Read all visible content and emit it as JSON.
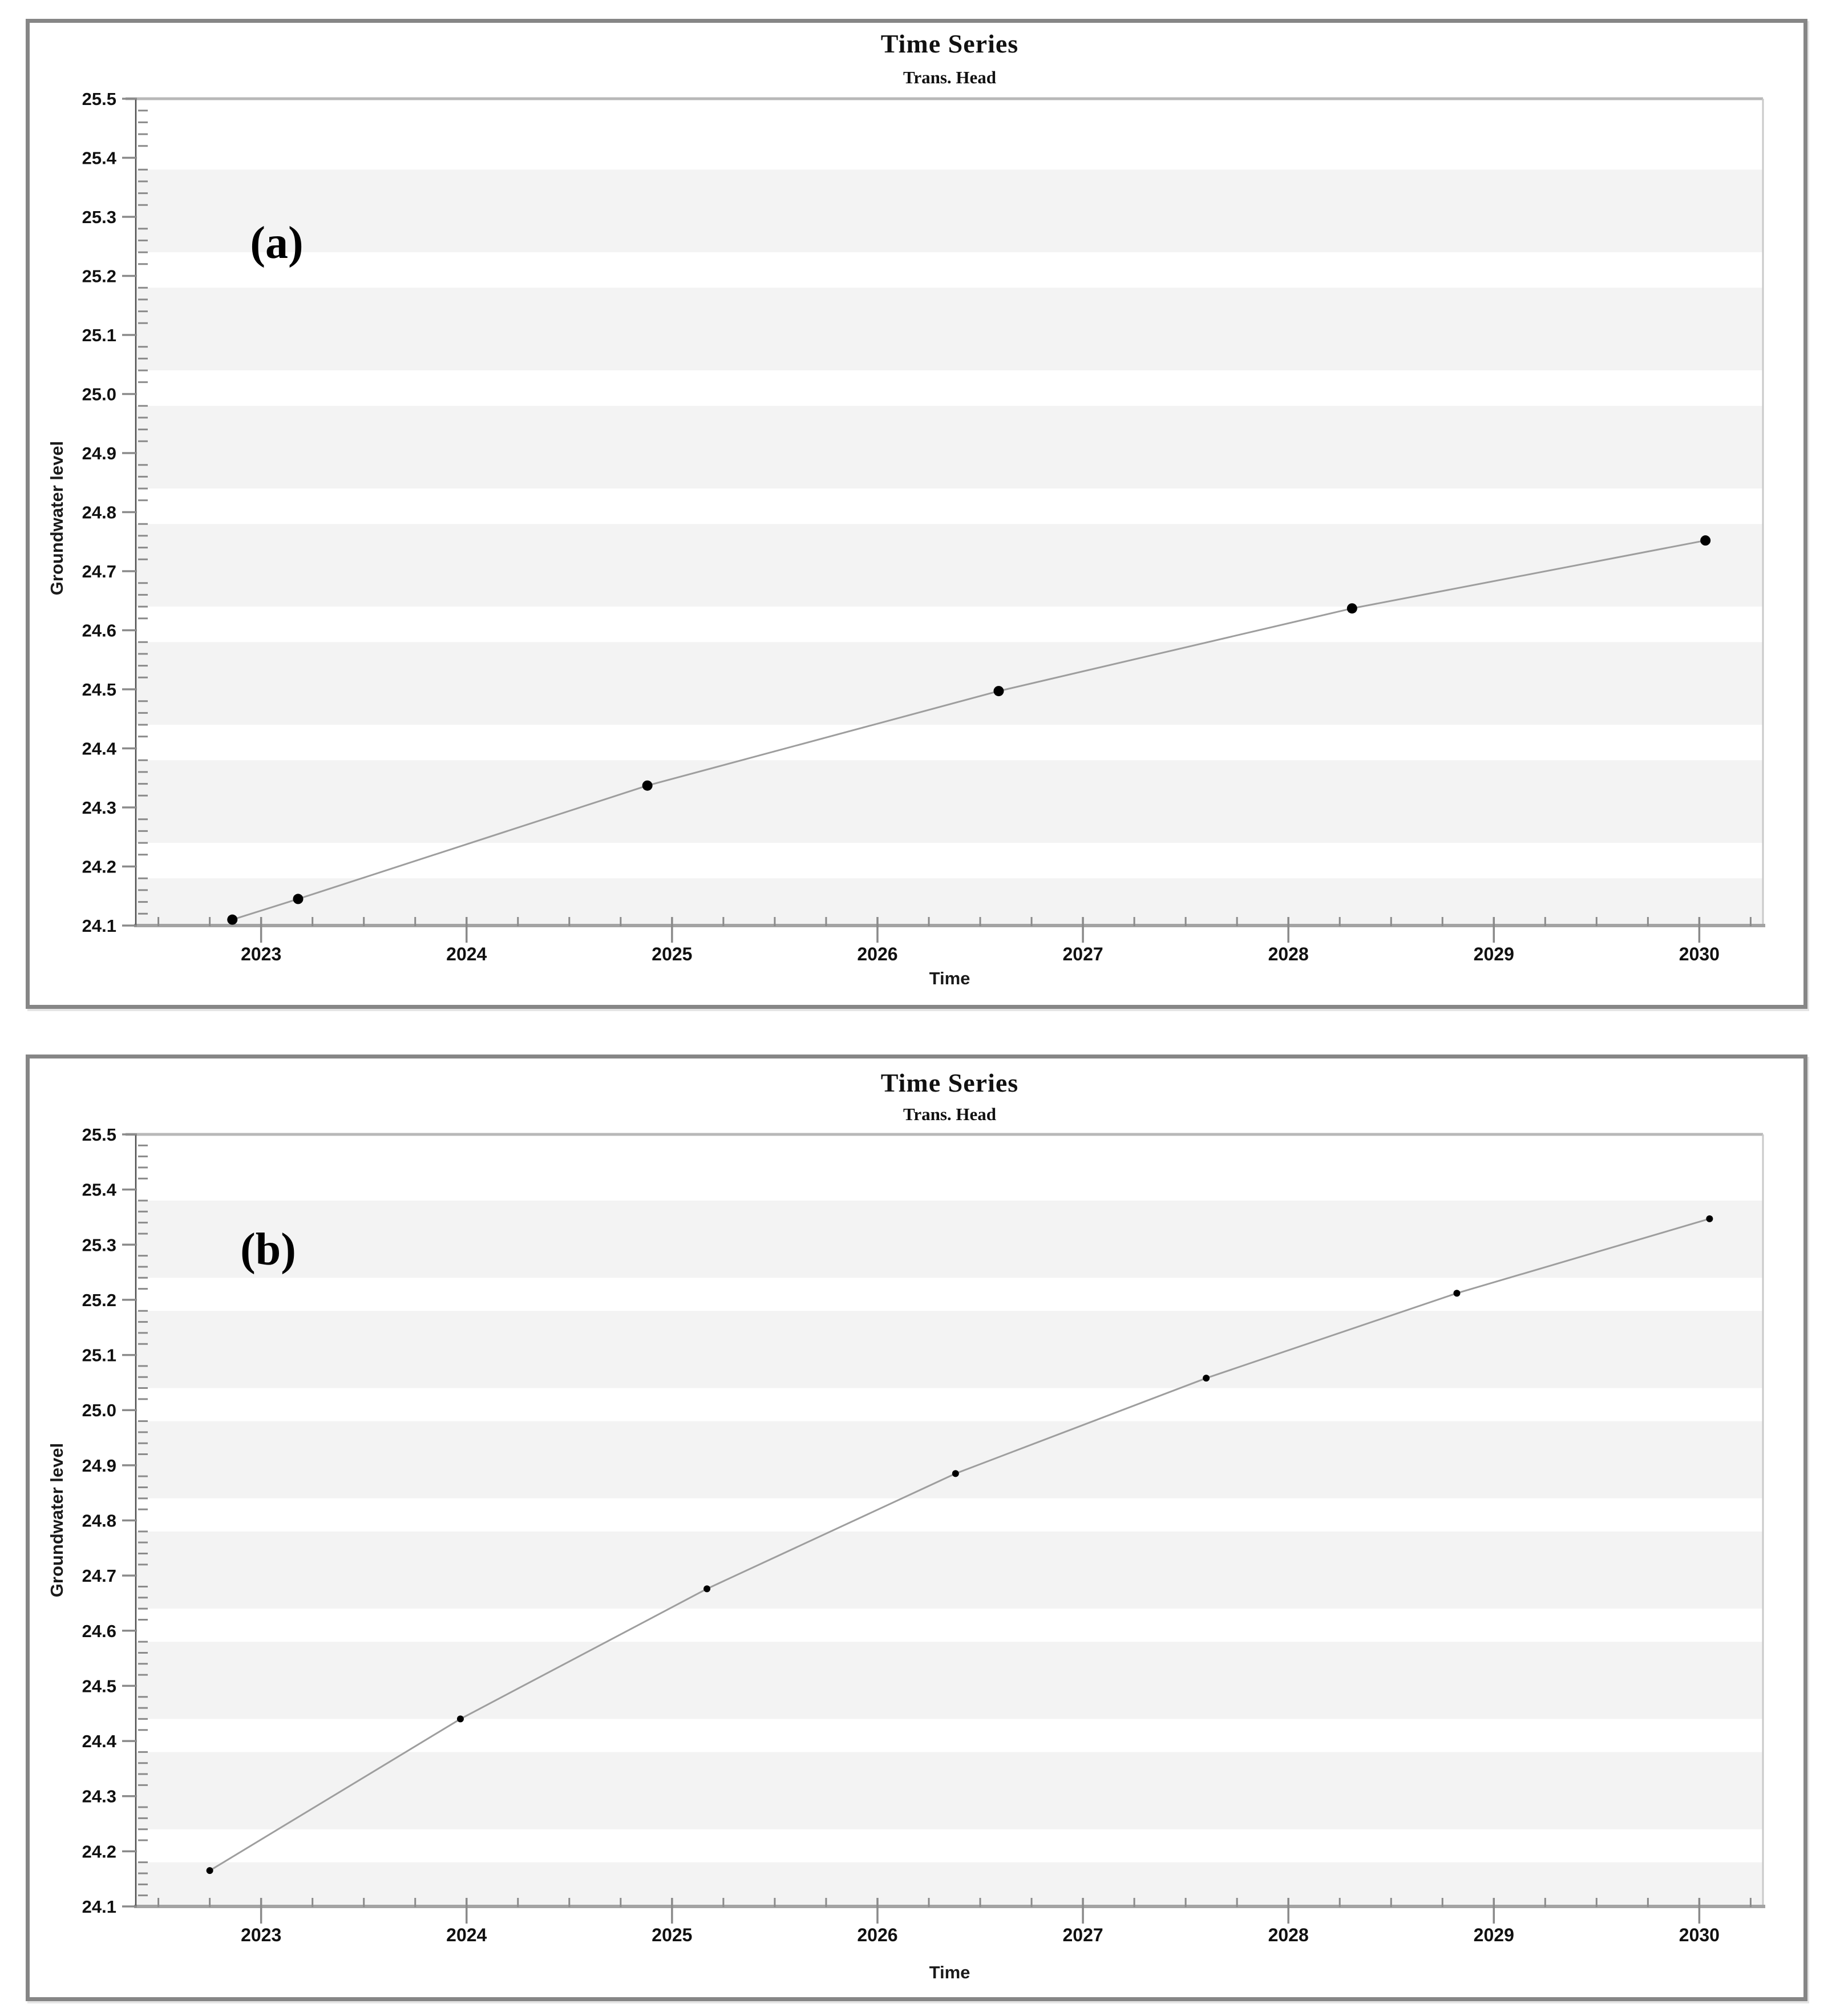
{
  "figure": {
    "background": "#ffffff",
    "panel_border_color": "#868686",
    "panels": [
      "a",
      "b"
    ]
  },
  "chart_data": [
    {
      "type": "line",
      "panel": "a",
      "annotation": "(a)",
      "title": "Time Series",
      "subtitle": "Trans. Head",
      "xlabel": "Time",
      "ylabel": "Groundwater level",
      "x": [
        2022.86,
        2023.18,
        2024.88,
        2026.59,
        2028.31,
        2030.03
      ],
      "y": [
        24.11,
        24.145,
        24.337,
        24.497,
        24.637,
        24.752
      ],
      "xlim": [
        2022.39,
        2030.31
      ],
      "ylim": [
        24.1,
        25.5
      ],
      "x_tick_labels": [
        "2023",
        "2024",
        "2025",
        "2026",
        "2027",
        "2028",
        "2029",
        "2030"
      ],
      "y_tick_labels": [
        "24.1",
        "24.2",
        "24.3",
        "24.4",
        "24.5",
        "24.6",
        "24.7",
        "24.8",
        "24.9",
        "25.0",
        "25.1",
        "25.2",
        "25.3",
        "25.4",
        "25.5"
      ],
      "x_minor_step": 0.25,
      "y_minor_step": 0.02,
      "grid": "alternating light horizontal bands",
      "legend": "none",
      "style": {
        "line_color": "#9e9e9e",
        "marker_color": "#000000",
        "marker_radius": 9,
        "band_color": "#f3f3f3",
        "axis_color": "#4d4d4d",
        "frame_color": "#b8b8b8",
        "tick_color": "#8a8a8a"
      }
    },
    {
      "type": "line",
      "panel": "b",
      "annotation": "(b)",
      "title": "Time Series",
      "subtitle": "Trans. Head",
      "xlabel": "Time",
      "ylabel": "Groundwater level",
      "x": [
        2022.75,
        2023.97,
        2025.17,
        2026.38,
        2027.6,
        2028.82,
        2030.05
      ],
      "y": [
        24.165,
        24.44,
        24.676,
        24.885,
        25.058,
        25.212,
        25.347
      ],
      "xlim": [
        2022.39,
        2030.31
      ],
      "ylim": [
        24.1,
        25.5
      ],
      "x_tick_labels": [
        "2023",
        "2024",
        "2025",
        "2026",
        "2027",
        "2028",
        "2029",
        "2030"
      ],
      "y_tick_labels": [
        "24.1",
        "24.2",
        "24.3",
        "24.4",
        "24.5",
        "24.6",
        "24.7",
        "24.8",
        "24.9",
        "25.0",
        "25.1",
        "25.2",
        "25.3",
        "25.4",
        "25.5"
      ],
      "x_minor_step": 0.25,
      "y_minor_step": 0.02,
      "grid": "alternating light horizontal bands",
      "legend": "none",
      "style": {
        "line_color": "#9e9e9e",
        "marker_color": "#000000",
        "marker_radius": 6,
        "band_color": "#f3f3f3",
        "axis_color": "#4d4d4d",
        "frame_color": "#b8b8b8",
        "tick_color": "#8a8a8a"
      }
    }
  ]
}
